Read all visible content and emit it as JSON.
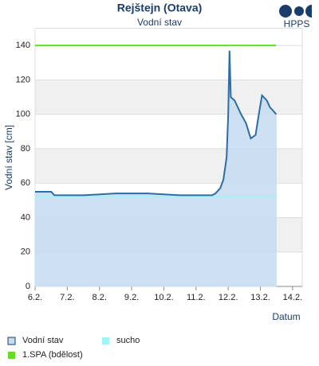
{
  "chart_data": {
    "type": "line",
    "title": "Rejštejn (Otava)",
    "subtitle": "Vodní stav",
    "logo": "HPPS",
    "y_label": "Vodní stav [cm]",
    "x_label": "Datum",
    "xlim": [
      6,
      14.3
    ],
    "ylim": [
      0,
      150
    ],
    "xticks": [
      {
        "value": 6,
        "label": "6.2."
      },
      {
        "value": 7,
        "label": "7.2."
      },
      {
        "value": 8,
        "label": "8.2."
      },
      {
        "value": 9,
        "label": "9.2."
      },
      {
        "value": 10,
        "label": "10.2."
      },
      {
        "value": 11,
        "label": "11.2."
      },
      {
        "value": 12,
        "label": "12.2."
      },
      {
        "value": 13,
        "label": "13.2."
      },
      {
        "value": 14,
        "label": "14.2."
      }
    ],
    "yticks": [
      0,
      20,
      40,
      60,
      80,
      100,
      120,
      140
    ],
    "grid": true,
    "series": [
      {
        "name": "Vodní stav",
        "color": "#2e6da4",
        "fill": "#c5dcf0",
        "x": [
          6,
          6.5,
          6.6,
          7.5,
          8.5,
          9.5,
          10.5,
          11.5,
          11.6,
          11.75,
          11.85,
          11.95,
          12.0,
          12.04,
          12.08,
          12.2,
          12.4,
          12.55,
          12.7,
          12.85,
          12.95,
          13.05,
          13.2,
          13.3,
          13.4,
          13.49
        ],
        "values": [
          55,
          55,
          53,
          53,
          54,
          54,
          53,
          53,
          54,
          57,
          62,
          75,
          100,
          137,
          110,
          108,
          100,
          95,
          86,
          88,
          100,
          111,
          108,
          104,
          102,
          100
        ]
      },
      {
        "name": "sucho",
        "color": "#9ff5f5",
        "x": [
          6,
          13.49
        ],
        "values": [
          52,
          52
        ]
      },
      {
        "name": "1.SPA (bdělost)",
        "color": "#66dd22",
        "x": [
          6,
          13.49
        ],
        "values": [
          140,
          140
        ]
      }
    ]
  }
}
